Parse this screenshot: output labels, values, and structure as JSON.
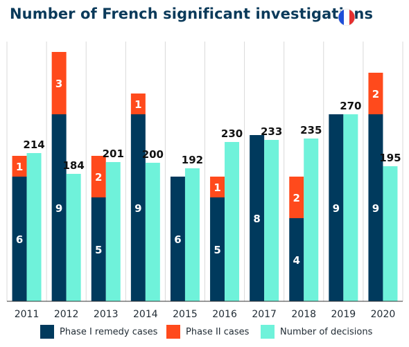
{
  "title": "Number of French significant investigations",
  "colors": {
    "phase1": "#003a5d",
    "phase2": "#ff4a1c",
    "decisions": "#6ff2da",
    "title": "#0b3a5a",
    "grid": "#d9d9d9"
  },
  "flag_icon": "france-flag-icon",
  "legend": [
    {
      "label": "Phase I remedy cases",
      "color": "#003a5d"
    },
    {
      "label": "Phase II cases",
      "color": "#ff4a1c"
    },
    {
      "label": "Number of decisions",
      "color": "#6ff2da"
    }
  ],
  "chart_data": {
    "type": "bar",
    "title": "Number of French significant investigations",
    "categories": [
      "2011",
      "2012",
      "2013",
      "2014",
      "2015",
      "2016",
      "2017",
      "2018",
      "2019",
      "2020"
    ],
    "series": [
      {
        "name": "Phase I remedy cases",
        "stack": "cases",
        "values": [
          6,
          9,
          5,
          9,
          6,
          5,
          8,
          4,
          9,
          9
        ]
      },
      {
        "name": "Phase II cases",
        "stack": "cases",
        "values": [
          1,
          3,
          2,
          1,
          0,
          1,
          0,
          2,
          0,
          2
        ]
      },
      {
        "name": "Number of decisions",
        "stack": "decisions",
        "values": [
          214,
          184,
          201,
          200,
          192,
          230,
          233,
          235,
          270,
          195
        ]
      }
    ],
    "data_labels": {
      "phase1": [
        "6",
        "9",
        "5",
        "9",
        "6",
        "5",
        "8",
        "4",
        "9",
        "9"
      ],
      "phase2": [
        "1",
        "3",
        "2",
        "1",
        "",
        "1",
        "",
        "2",
        "",
        "2"
      ],
      "decisions": [
        "214",
        "184",
        "201",
        "200",
        "192",
        "230",
        "233",
        "235",
        "270",
        "195"
      ]
    },
    "legend_position": "bottom",
    "grid": "vertical",
    "cases_ylim": [
      0,
      12
    ],
    "decisions_ylim": [
      0,
      300
    ]
  }
}
